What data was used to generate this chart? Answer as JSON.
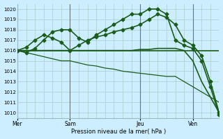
{
  "background_color": "#cceeff",
  "grid_color": "#aacccc",
  "line_color": "#1a5c1a",
  "title": "Pression niveau de la mer( hPa )",
  "ylim": [
    1009.5,
    1020.5
  ],
  "yticks": [
    1010,
    1011,
    1012,
    1013,
    1014,
    1015,
    1016,
    1017,
    1018,
    1019,
    1020
  ],
  "day_labels": [
    "Mer",
    "Sam",
    "Jeu",
    "Ven"
  ],
  "day_positions": [
    0,
    6,
    14,
    20
  ],
  "n_points": 24,
  "series": [
    {
      "x": [
        0,
        1,
        2,
        3,
        4,
        5,
        6,
        7,
        8,
        9,
        10,
        11,
        12,
        13,
        14,
        15,
        16,
        17,
        18,
        19,
        20,
        21,
        22,
        23
      ],
      "y": [
        1016,
        1016,
        1016,
        1016,
        1016,
        1016,
        1016,
        1016,
        1016,
        1016,
        1016,
        1016,
        1016,
        1016,
        1016,
        1016,
        1016,
        1016,
        1016,
        1016,
        1016,
        1016,
        1016,
        1016
      ],
      "marker": null,
      "linewidth": 1.2
    },
    {
      "x": [
        0,
        1,
        2,
        3,
        4,
        5,
        6,
        7,
        8,
        9,
        10,
        11,
        12,
        13,
        14,
        15,
        16,
        17,
        18,
        19,
        20,
        21,
        22,
        23
      ],
      "y": [
        1016,
        1016,
        1016,
        1016,
        1016,
        1016,
        1016,
        1016,
        1016,
        1016,
        1016,
        1016,
        1016,
        1016,
        1016.1,
        1016.1,
        1016.2,
        1016.2,
        1016.2,
        1016,
        1015,
        1013,
        1011.5,
        1010
      ],
      "marker": null,
      "linewidth": 1.2
    },
    {
      "x": [
        0,
        1,
        2,
        3,
        4,
        5,
        6,
        7,
        8,
        9,
        10,
        11,
        12,
        13,
        14,
        15,
        16,
        17,
        18,
        19,
        20,
        21,
        22,
        23
      ],
      "y": [
        1016,
        1016.3,
        1017.0,
        1017.5,
        1017.2,
        1016.8,
        1016.0,
        1016.5,
        1017.0,
        1017.3,
        1017.5,
        1017.8,
        1018.0,
        1018.2,
        1018.5,
        1019.0,
        1019.5,
        1019.2,
        1018.5,
        1017.0,
        1016.5,
        1015.5,
        1013.0,
        1010
      ],
      "marker": "D",
      "markersize": 2.5,
      "linewidth": 1.2
    },
    {
      "x": [
        0,
        1,
        2,
        3,
        4,
        5,
        6,
        7,
        8,
        9,
        10,
        11,
        12,
        13,
        14,
        15,
        16,
        17,
        18,
        19,
        20,
        21,
        22,
        23
      ],
      "y": [
        1016,
        1015.8,
        1015.6,
        1015.4,
        1015.2,
        1015.0,
        1015.0,
        1014.8,
        1014.6,
        1014.5,
        1014.3,
        1014.2,
        1014.0,
        1013.9,
        1013.8,
        1013.7,
        1013.6,
        1013.5,
        1013.5,
        1013.0,
        1012.5,
        1012.0,
        1011.5,
        1011.0
      ],
      "marker": null,
      "linewidth": 0.9
    },
    {
      "x": [
        0,
        1,
        2,
        3,
        4,
        5,
        6,
        7,
        8,
        9,
        10,
        11,
        12,
        13,
        14,
        15,
        16,
        17,
        18,
        19,
        20,
        21,
        22,
        23
      ],
      "y": [
        1016,
        1015.8,
        1016.2,
        1017.0,
        1017.8,
        1018.0,
        1018.0,
        1017.2,
        1016.8,
        1017.5,
        1018.0,
        1018.5,
        1019.0,
        1019.5,
        1019.5,
        1020.0,
        1020.0,
        1019.5,
        1017.0,
        1016.5,
        1016.2,
        1015.0,
        1012.5,
        1009.8
      ],
      "marker": "D",
      "markersize": 2.5,
      "linewidth": 1.2
    }
  ]
}
